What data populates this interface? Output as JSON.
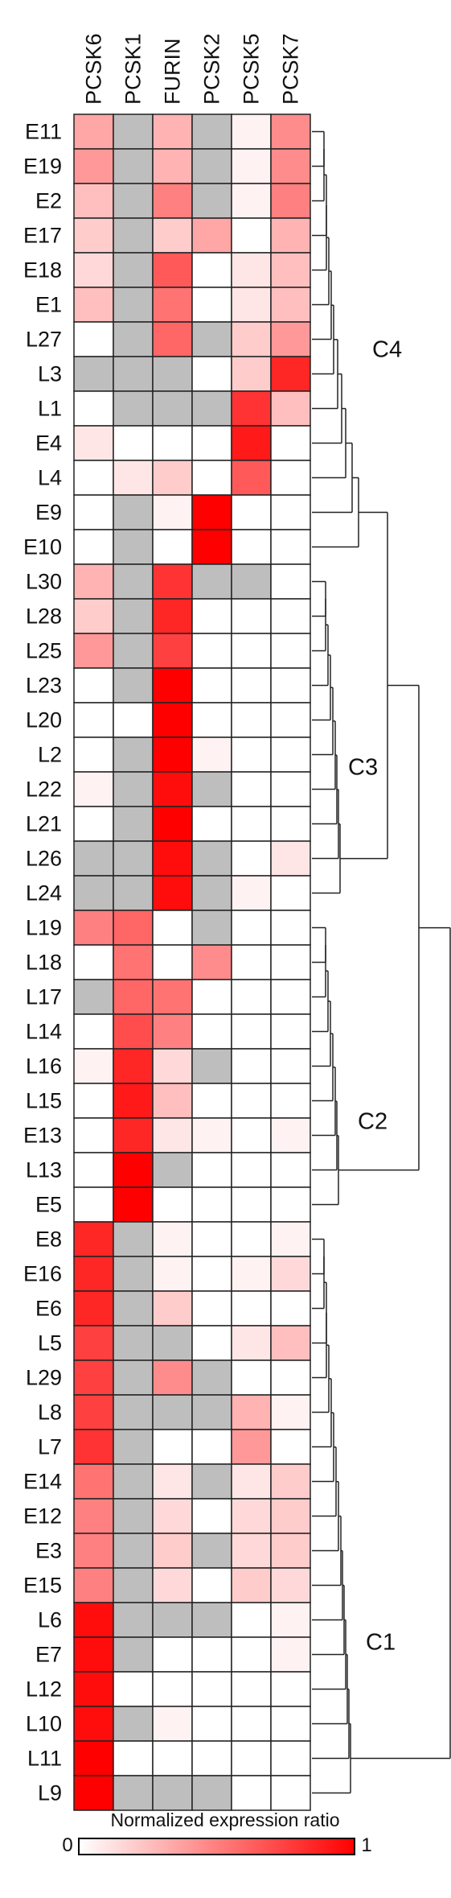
{
  "chart_data": {
    "type": "heatmap",
    "title": "",
    "columns": [
      "PCSK6",
      "PCSK1",
      "FURIN",
      "PCSK2",
      "PCSK5",
      "PCSK7"
    ],
    "rows": [
      "E11",
      "E19",
      "E2",
      "E17",
      "E18",
      "E1",
      "L27",
      "L3",
      "L1",
      "E4",
      "L4",
      "E9",
      "E10",
      "L30",
      "L28",
      "L25",
      "L23",
      "L20",
      "L2",
      "L22",
      "L21",
      "L26",
      "L24",
      "L19",
      "L18",
      "L17",
      "L14",
      "L16",
      "L15",
      "E13",
      "L13",
      "E5",
      "E8",
      "E16",
      "E6",
      "L5",
      "L29",
      "L8",
      "L7",
      "E14",
      "E12",
      "E3",
      "E15",
      "L6",
      "E7",
      "L12",
      "L10",
      "L11",
      "L9"
    ],
    "na_value": "NA",
    "values": [
      [
        0.35,
        "NA",
        0.3,
        "NA",
        0.05,
        0.45
      ],
      [
        0.4,
        "NA",
        0.3,
        "NA",
        0.05,
        0.45
      ],
      [
        0.25,
        "NA",
        0.5,
        "NA",
        0.05,
        0.5
      ],
      [
        0.2,
        "NA",
        0.2,
        0.35,
        0.0,
        0.3
      ],
      [
        0.15,
        "NA",
        0.65,
        0.0,
        0.1,
        0.25
      ],
      [
        0.25,
        "NA",
        0.55,
        0.0,
        0.1,
        0.25
      ],
      [
        0.0,
        "NA",
        0.6,
        "NA",
        0.2,
        0.4
      ],
      [
        "NA",
        "NA",
        "NA",
        0.0,
        0.2,
        0.85
      ],
      [
        0.0,
        "NA",
        "NA",
        "NA",
        0.8,
        0.25
      ],
      [
        0.1,
        0.0,
        0.0,
        0.0,
        0.9,
        0.0
      ],
      [
        0.0,
        0.1,
        0.2,
        0.0,
        0.65,
        0.0
      ],
      [
        0.0,
        "NA",
        0.05,
        1.0,
        0.0,
        0.0
      ],
      [
        0.0,
        "NA",
        0.0,
        1.0,
        0.0,
        0.0
      ],
      [
        0.3,
        "NA",
        0.8,
        "NA",
        "NA",
        0.0
      ],
      [
        0.2,
        "NA",
        0.85,
        0.0,
        0.0,
        0.0
      ],
      [
        0.4,
        "NA",
        0.75,
        0.0,
        0.0,
        0.0
      ],
      [
        0.0,
        "NA",
        1.0,
        0.0,
        0.0,
        0.0
      ],
      [
        0.0,
        0.0,
        1.0,
        0.0,
        0.0,
        0.0
      ],
      [
        0.0,
        "NA",
        1.0,
        0.05,
        0.0,
        0.0
      ],
      [
        0.05,
        "NA",
        0.95,
        "NA",
        0.0,
        0.0
      ],
      [
        0.0,
        "NA",
        1.0,
        0.0,
        0.0,
        0.0
      ],
      [
        "NA",
        "NA",
        0.95,
        "NA",
        0.0,
        0.1
      ],
      [
        "NA",
        "NA",
        0.95,
        "NA",
        0.05,
        0.0
      ],
      [
        0.5,
        0.6,
        0.0,
        "NA",
        0.0,
        0.0
      ],
      [
        0.0,
        0.55,
        0.0,
        0.45,
        0.0,
        0.0
      ],
      [
        "NA",
        0.6,
        0.55,
        0.0,
        0.0,
        0.0
      ],
      [
        0.0,
        0.7,
        0.5,
        0.0,
        0.0,
        0.0
      ],
      [
        0.05,
        0.85,
        0.15,
        "NA",
        0.0,
        0.0
      ],
      [
        0.0,
        0.9,
        0.25,
        0.0,
        0.0,
        0.0
      ],
      [
        0.0,
        0.85,
        0.1,
        0.05,
        0.0,
        0.05
      ],
      [
        0.0,
        1.0,
        "NA",
        0.0,
        0.0,
        0.0
      ],
      [
        0.0,
        1.0,
        0.0,
        0.0,
        0.0,
        0.0
      ],
      [
        0.85,
        "NA",
        0.05,
        0.0,
        0.0,
        0.05
      ],
      [
        0.85,
        "NA",
        0.05,
        0.0,
        0.05,
        0.15
      ],
      [
        0.85,
        "NA",
        0.2,
        0.0,
        0.0,
        0.0
      ],
      [
        0.75,
        "NA",
        "NA",
        0.0,
        0.1,
        0.25
      ],
      [
        0.75,
        "NA",
        0.45,
        "NA",
        0.0,
        0.0
      ],
      [
        0.75,
        "NA",
        "NA",
        "NA",
        0.3,
        0.05
      ],
      [
        0.8,
        "NA",
        0.0,
        0.0,
        0.4,
        0.0
      ],
      [
        0.55,
        "NA",
        0.1,
        "NA",
        0.1,
        0.2
      ],
      [
        0.5,
        "NA",
        0.15,
        0.0,
        0.15,
        0.2
      ],
      [
        0.5,
        "NA",
        0.2,
        "NA",
        0.15,
        0.2
      ],
      [
        0.5,
        "NA",
        0.15,
        0.0,
        0.2,
        0.15
      ],
      [
        0.95,
        "NA",
        "NA",
        "NA",
        0.0,
        0.05
      ],
      [
        0.95,
        "NA",
        0.0,
        0.0,
        0.0,
        0.05
      ],
      [
        0.95,
        0.0,
        0.0,
        0.0,
        0.0,
        0.0
      ],
      [
        0.95,
        "NA",
        0.05,
        0.0,
        0.0,
        0.0
      ],
      [
        1.0,
        0.0,
        0.0,
        0.0,
        0.0,
        0.0
      ],
      [
        1.0,
        "NA",
        "NA",
        "NA",
        0.0,
        0.0
      ]
    ],
    "color_scale": {
      "low": "#ffffff",
      "high": "#ff0000",
      "na": "#bebebe",
      "min": 0,
      "max": 1
    },
    "clusters": [
      {
        "label": "C4",
        "first_row": "E11",
        "last_row": "E10"
      },
      {
        "label": "C3",
        "first_row": "L30",
        "last_row": "L24"
      },
      {
        "label": "C2",
        "first_row": "L19",
        "last_row": "E5"
      },
      {
        "label": "C1",
        "first_row": "E8",
        "last_row": "L9"
      }
    ],
    "legend": {
      "title": "Normalized expression ratio",
      "min_label": "0",
      "max_label": "1"
    }
  }
}
